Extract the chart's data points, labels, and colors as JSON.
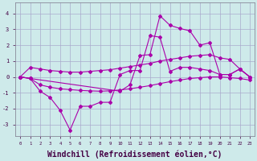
{
  "background_color": "#ceeaea",
  "grid_color": "#aaaacc",
  "line_color": "#aa00aa",
  "xlabel": "Windchill (Refroidissement éolien,°C)",
  "xlabel_fontsize": 7,
  "yticks": [
    -3,
    -2,
    -1,
    0,
    1,
    2,
    3,
    4
  ],
  "xticks": [
    0,
    1,
    2,
    3,
    4,
    5,
    6,
    7,
    8,
    9,
    10,
    11,
    12,
    13,
    14,
    15,
    16,
    17,
    18,
    19,
    20,
    21,
    22,
    23
  ],
  "xlim": [
    -0.5,
    23.5
  ],
  "ylim": [
    -3.7,
    4.7
  ],
  "line_upper_straight_x": [
    0,
    1,
    2,
    3,
    4,
    5,
    6,
    7,
    8,
    9,
    10,
    11,
    12,
    13,
    14,
    15,
    16,
    17,
    18,
    19,
    20,
    21,
    22,
    23
  ],
  "line_upper_straight_y": [
    0.0,
    0.6,
    0.5,
    0.4,
    0.35,
    0.3,
    0.3,
    0.35,
    0.4,
    0.45,
    0.55,
    0.65,
    0.75,
    0.85,
    1.0,
    1.1,
    1.2,
    1.3,
    1.35,
    1.4,
    1.2,
    1.1,
    0.5,
    0.0
  ],
  "line_lower_straight_x": [
    0,
    1,
    2,
    3,
    4,
    5,
    6,
    7,
    8,
    9,
    10,
    11,
    12,
    13,
    14,
    15,
    16,
    17,
    18,
    19,
    20,
    21,
    22,
    23
  ],
  "line_lower_straight_y": [
    0.0,
    -0.1,
    -0.5,
    -0.65,
    -0.75,
    -0.8,
    -0.85,
    -0.88,
    -0.9,
    -0.88,
    -0.82,
    -0.75,
    -0.65,
    -0.55,
    -0.42,
    -0.3,
    -0.2,
    -0.1,
    -0.05,
    0.0,
    0.0,
    -0.05,
    -0.1,
    -0.2
  ],
  "line_spike_dip_x": [
    0,
    1,
    2,
    3,
    4,
    5,
    6,
    7,
    8,
    9,
    10,
    11,
    12,
    13,
    14,
    15,
    16,
    17,
    18,
    19,
    20,
    21,
    22,
    23
  ],
  "line_spike_dip_y": [
    0.0,
    -0.1,
    -0.9,
    -1.3,
    -2.1,
    -3.35,
    -1.85,
    -1.85,
    -1.6,
    -1.6,
    0.15,
    0.4,
    0.4,
    2.6,
    2.5,
    0.35,
    0.6,
    0.6,
    0.5,
    0.4,
    0.15,
    0.15,
    0.5,
    0.0
  ],
  "line_big_spike_x": [
    0,
    1,
    10,
    11,
    12,
    13,
    14,
    15,
    16,
    17,
    18,
    19,
    20,
    21,
    22,
    23
  ],
  "line_big_spike_y": [
    0.0,
    -0.1,
    -0.9,
    -0.5,
    1.35,
    1.4,
    3.85,
    3.25,
    3.05,
    2.9,
    2.0,
    2.15,
    0.15,
    0.15,
    0.5,
    0.0
  ]
}
